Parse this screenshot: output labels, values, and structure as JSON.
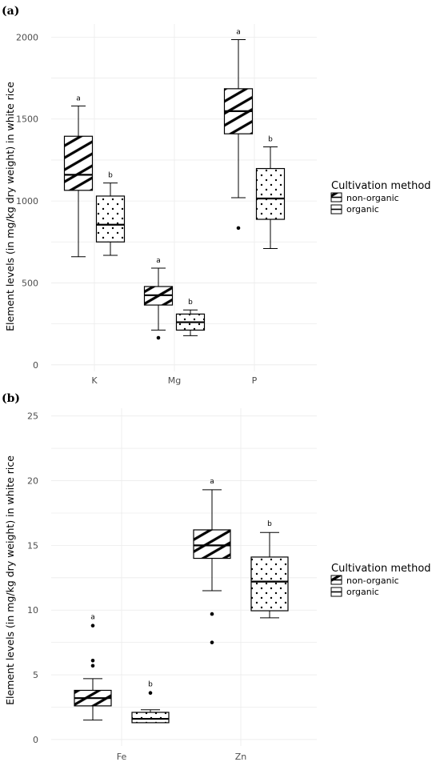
{
  "legend": {
    "title": "Cultivation method",
    "items": [
      {
        "label": "non-organic",
        "pattern": "stripe"
      },
      {
        "label": "organic",
        "pattern": "dots"
      }
    ]
  },
  "colors": {
    "box_fill": "#ffffff",
    "stroke": "#000000",
    "grid": "#ebebeb"
  },
  "chart_data": [
    {
      "type": "boxplot",
      "panel_label": "(a)",
      "ylabel": "Element levels (in mg/kg dry weight) in white rice",
      "ylim": [
        -40,
        2080
      ],
      "yticks": [
        0,
        500,
        1000,
        1500,
        2000
      ],
      "categories": [
        "K",
        "Mg",
        "P"
      ],
      "series": [
        {
          "name": "non-organic",
          "pattern": "stripe",
          "boxes": [
            {
              "q1": 1065,
              "median": 1160,
              "q3": 1395,
              "whisker_low": 660,
              "whisker_high": 1580,
              "outliers": [],
              "letter": "a"
            },
            {
              "q1": 365,
              "median": 425,
              "q3": 478,
              "whisker_low": 212,
              "whisker_high": 590,
              "outliers": [
                165
              ],
              "letter": "a"
            },
            {
              "q1": 1410,
              "median": 1548,
              "q3": 1685,
              "whisker_low": 1020,
              "whisker_high": 1985,
              "outliers": [
                835
              ],
              "letter": "a"
            }
          ]
        },
        {
          "name": "organic",
          "pattern": "dots",
          "boxes": [
            {
              "q1": 750,
              "median": 855,
              "q3": 1030,
              "whisker_low": 668,
              "whisker_high": 1110,
              "outliers": [],
              "letter": "b"
            },
            {
              "q1": 212,
              "median": 260,
              "q3": 310,
              "whisker_low": 178,
              "whisker_high": 335,
              "outliers": [],
              "letter": "b"
            },
            {
              "q1": 888,
              "median": 1015,
              "q3": 1198,
              "whisker_low": 710,
              "whisker_high": 1330,
              "outliers": [],
              "letter": "b"
            }
          ]
        }
      ]
    },
    {
      "type": "boxplot",
      "panel_label": "(b)",
      "ylabel": "Element levels (in mg/kg dry weight) in white rice",
      "ylim": [
        -0.5,
        25.6
      ],
      "yticks": [
        0,
        5,
        10,
        15,
        20,
        25
      ],
      "categories": [
        "Fe",
        "Zn"
      ],
      "series": [
        {
          "name": "non-organic",
          "pattern": "stripe",
          "boxes": [
            {
              "q1": 2.6,
              "median": 3.2,
              "q3": 3.8,
              "whisker_low": 1.5,
              "whisker_high": 4.7,
              "outliers": [
                5.7,
                6.1,
                8.8
              ],
              "letter": "a"
            },
            {
              "q1": 14.0,
              "median": 15.0,
              "q3": 16.2,
              "whisker_low": 11.5,
              "whisker_high": 19.3,
              "outliers": [
                9.7,
                7.5
              ],
              "letter": "a"
            }
          ]
        },
        {
          "name": "organic",
          "pattern": "dots",
          "boxes": [
            {
              "q1": 1.3,
              "median": 1.6,
              "q3": 2.1,
              "whisker_low": 1.3,
              "whisker_high": 2.3,
              "outliers": [
                3.6
              ],
              "letter": "b"
            },
            {
              "q1": 9.95,
              "median": 12.2,
              "q3": 14.1,
              "whisker_low": 9.4,
              "whisker_high": 16.0,
              "outliers": [],
              "letter": "b"
            }
          ]
        }
      ]
    }
  ]
}
